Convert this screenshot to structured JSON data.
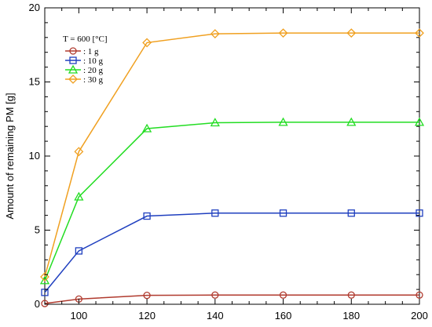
{
  "chart_data": {
    "type": "line",
    "x": [
      90,
      100,
      120,
      140,
      160,
      180,
      200
    ],
    "xlim": [
      90,
      200
    ],
    "ylim": [
      0,
      20
    ],
    "xticks": [
      100,
      120,
      140,
      160,
      180,
      200
    ],
    "yticks": [
      0,
      5,
      10,
      15,
      20
    ],
    "xlabel": "",
    "ylabel": "Amount of remaining PM [g]",
    "title": "",
    "legend": {
      "title": "T = 600 [°C]",
      "position": "top-left"
    },
    "grid": false,
    "series": [
      {
        "name": ": 1 g",
        "marker": "circle",
        "color": "#b03a2e",
        "values": [
          0.05,
          0.35,
          0.6,
          0.62,
          0.62,
          0.62,
          0.62
        ]
      },
      {
        "name": ": 10 g",
        "marker": "square",
        "color": "#1f3fbf",
        "values": [
          0.8,
          3.6,
          5.95,
          6.15,
          6.15,
          6.15,
          6.15
        ]
      },
      {
        "name": ": 20 g",
        "marker": "triangle",
        "color": "#22dd22",
        "values": [
          1.6,
          7.25,
          11.85,
          12.25,
          12.28,
          12.28,
          12.28
        ]
      },
      {
        "name": ": 30 g",
        "marker": "diamond",
        "color": "#f0a020",
        "values": [
          1.85,
          10.3,
          17.65,
          18.25,
          18.3,
          18.3,
          18.3
        ]
      }
    ]
  }
}
